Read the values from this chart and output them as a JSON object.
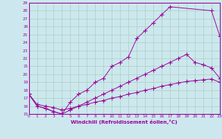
{
  "xlabel": "Windchill (Refroidissement éolien,°C)",
  "bg_color": "#cce8ee",
  "grid_color": "#aaccbb",
  "line_color": "#990099",
  "xmin": 0,
  "xmax": 23,
  "ymin": 15,
  "ymax": 29,
  "line1_x": [
    0,
    1,
    2,
    3,
    4,
    5,
    6,
    7,
    8,
    9,
    10,
    11,
    12,
    13,
    14,
    15,
    16,
    17,
    22,
    23
  ],
  "line1_y": [
    17.5,
    16.0,
    15.7,
    15.3,
    15.0,
    16.5,
    17.5,
    18.0,
    19.0,
    19.5,
    21.0,
    21.5,
    22.2,
    24.5,
    25.5,
    26.5,
    27.5,
    28.5,
    28.0,
    24.8
  ],
  "line2_x": [
    0,
    1,
    2,
    3,
    4,
    5,
    6,
    7,
    8,
    9,
    10,
    11,
    12,
    13,
    14,
    15,
    16,
    17,
    18,
    19,
    20,
    21,
    22,
    23
  ],
  "line2_y": [
    17.5,
    16.0,
    15.7,
    15.3,
    15.0,
    15.5,
    16.0,
    16.5,
    17.0,
    17.5,
    18.0,
    18.5,
    19.0,
    19.5,
    20.0,
    20.5,
    21.0,
    21.5,
    22.0,
    22.5,
    21.5,
    21.2,
    20.8,
    19.5
  ],
  "line3_x": [
    0,
    1,
    2,
    3,
    4,
    5,
    6,
    7,
    8,
    9,
    10,
    11,
    12,
    13,
    14,
    15,
    16,
    17,
    18,
    19,
    20,
    21,
    22,
    23
  ],
  "line3_y": [
    17.5,
    16.2,
    16.0,
    15.8,
    15.5,
    15.7,
    16.0,
    16.2,
    16.5,
    16.7,
    17.0,
    17.2,
    17.5,
    17.7,
    18.0,
    18.2,
    18.5,
    18.7,
    18.9,
    19.1,
    19.2,
    19.3,
    19.4,
    19.0
  ]
}
